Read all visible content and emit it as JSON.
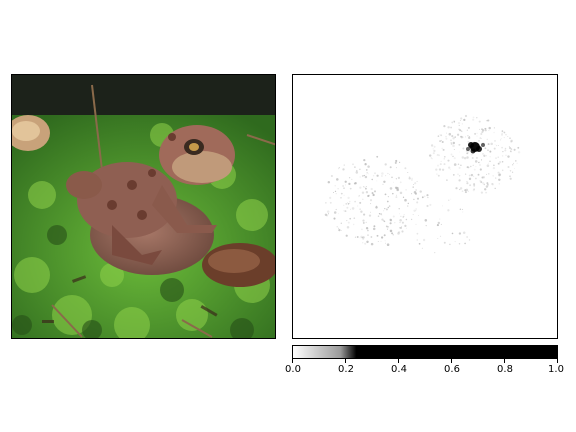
{
  "figure": {
    "left_panel": {
      "subject": "toad-photo"
    },
    "right_panel": {
      "subject": "saliency-map",
      "colormap": "white-to-black"
    },
    "colorbar": {
      "range": [
        0.0,
        1.0
      ],
      "ticks": [
        "0.0",
        "0.2",
        "0.4",
        "0.6",
        "0.8",
        "1.0"
      ],
      "colors": {
        "low": "#ffffff",
        "high": "#000000"
      }
    }
  }
}
